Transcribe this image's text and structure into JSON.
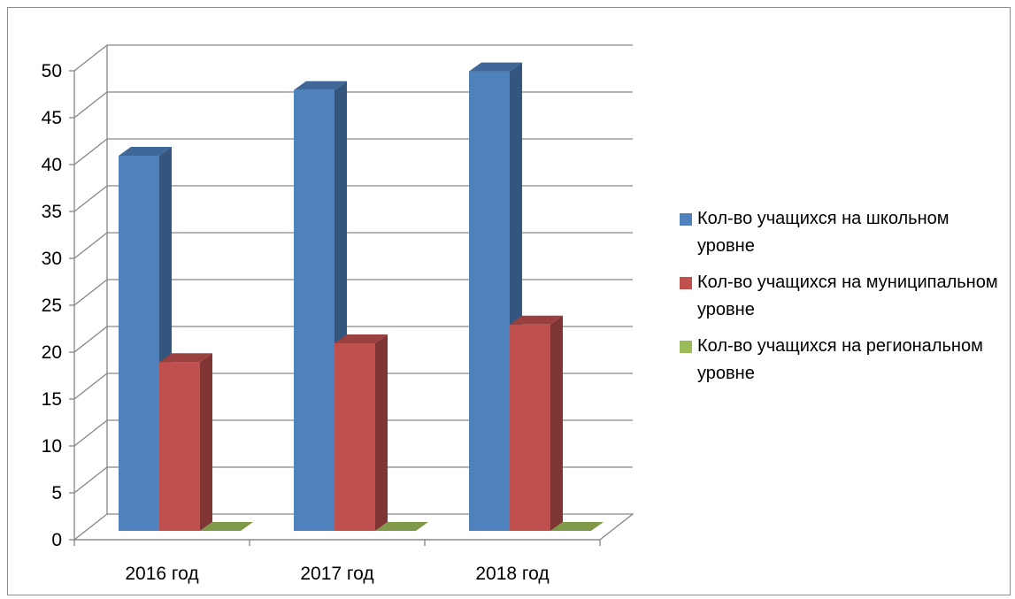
{
  "chart_data": {
    "type": "bar",
    "bar_style": "3d-clustered-column",
    "categories": [
      "2016 год",
      "2017 год",
      "2018 год"
    ],
    "series": [
      {
        "name": "Кол-во учащихся на школьном уровне",
        "color": "#4f81bd",
        "values": [
          40,
          47,
          49
        ]
      },
      {
        "name": "Кол-во учащихся на муниципальном уровне",
        "color": "#c0504d",
        "values": [
          18,
          20,
          22
        ]
      },
      {
        "name": "Кол-во учащихся на региональном уровне",
        "color": "#9bbb59",
        "values": [
          0,
          0,
          0
        ]
      }
    ],
    "ylim": [
      0,
      50
    ],
    "yticks": [
      "0",
      "5",
      "10",
      "15",
      "20",
      "25",
      "30",
      "35",
      "40",
      "45",
      "50"
    ],
    "grid": true,
    "legend_position": "right"
  }
}
